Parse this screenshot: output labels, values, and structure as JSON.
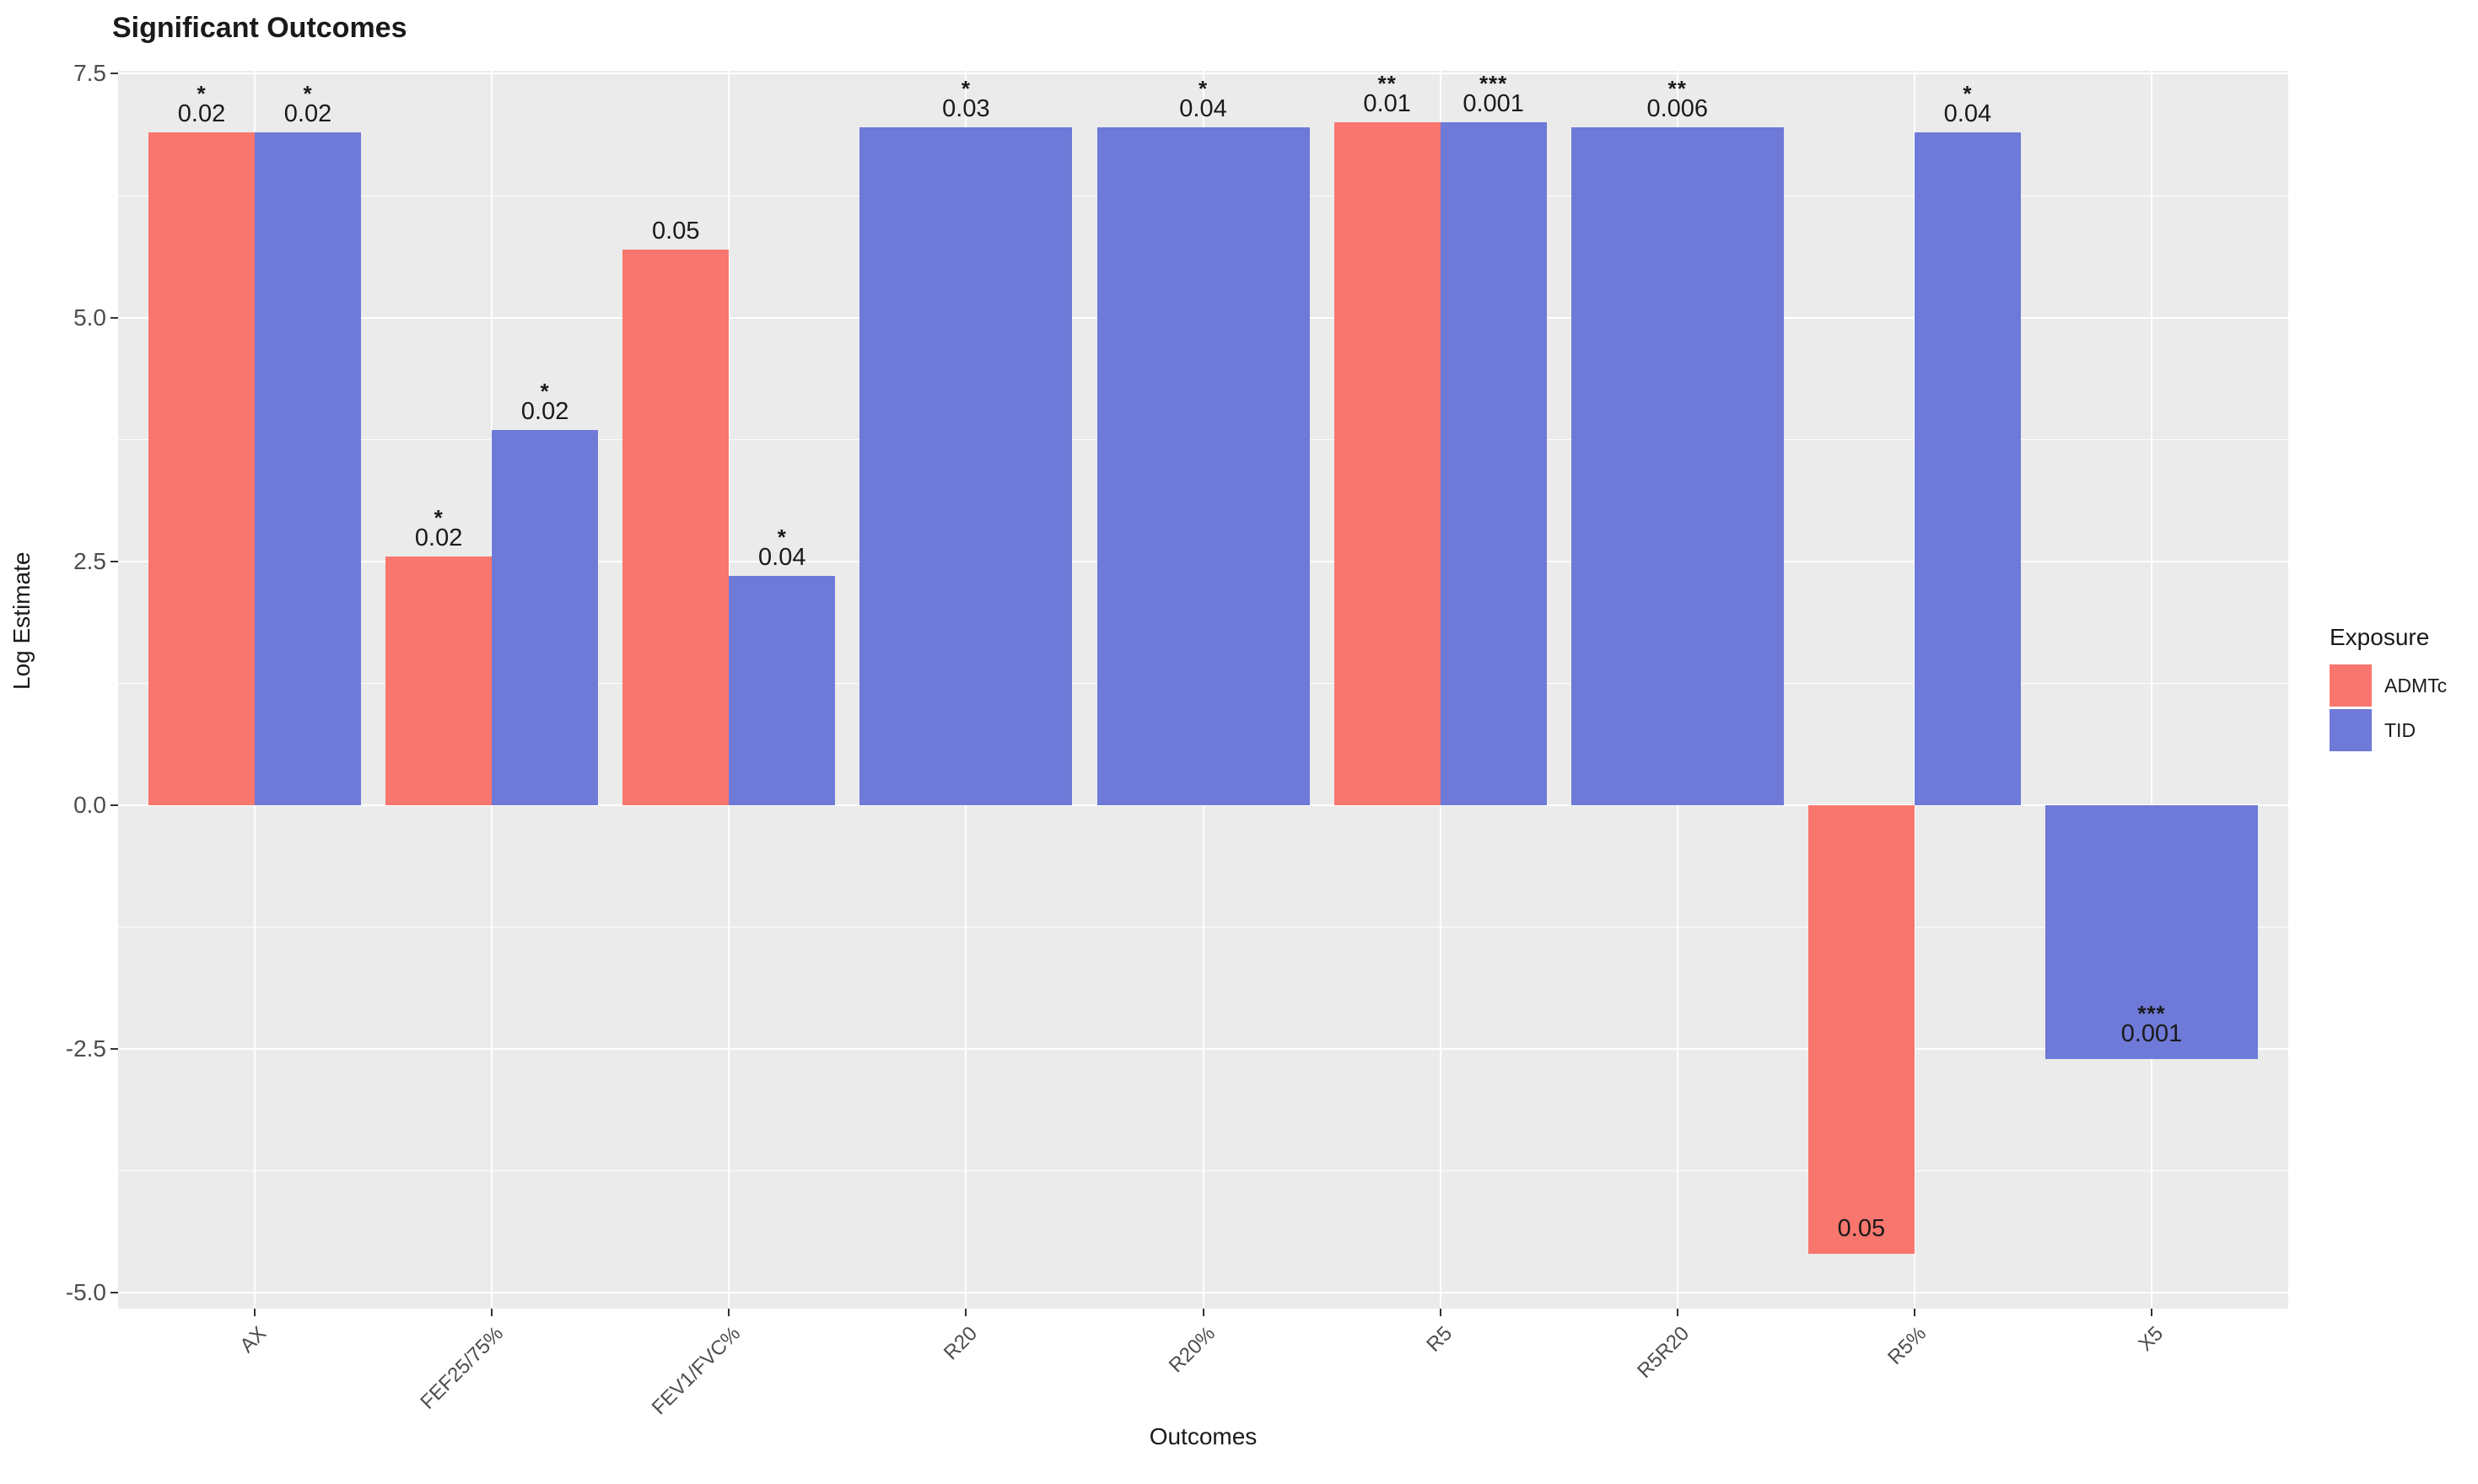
{
  "chart_data": {
    "type": "bar",
    "title": "Significant Outcomes",
    "xlabel": "Outcomes",
    "ylabel": "Log Estimate",
    "categories": [
      "AX",
      "FEF25/75%",
      "FEV1/FVC%",
      "R20",
      "R20%",
      "R5",
      "R5R20",
      "R5%",
      "X5"
    ],
    "series": [
      {
        "name": "ADMTc",
        "color": "#F8766D",
        "values": [
          6.9,
          2.55,
          5.7,
          null,
          null,
          7.0,
          null,
          -4.6,
          null
        ],
        "p_labels": [
          "0.02",
          "0.02",
          "0.05",
          null,
          null,
          "0.01",
          null,
          "0.05",
          null
        ],
        "stars": [
          "*",
          "*",
          "",
          null,
          null,
          "**",
          null,
          "",
          null
        ]
      },
      {
        "name": "TID",
        "color": "#6E79D8",
        "values": [
          6.9,
          3.85,
          2.35,
          6.95,
          6.95,
          7.0,
          6.95,
          6.9,
          -2.6
        ],
        "p_labels": [
          "0.02",
          "0.02",
          "0.04",
          "0.03",
          "0.04",
          "0.001",
          "0.006",
          "0.04",
          "0.001"
        ],
        "stars": [
          "*",
          "*",
          "*",
          "*",
          "*",
          "***",
          "**",
          "*",
          "***"
        ]
      }
    ],
    "ylim": [
      -5.16,
      7.53
    ],
    "yticks": [
      7.5,
      5.0,
      2.5,
      0.0,
      -2.5,
      -5.0
    ],
    "ytick_labels": [
      "7.5",
      "5.0",
      "2.5",
      "0.0",
      "-2.5",
      "-5.0"
    ],
    "yminor": [
      6.25,
      3.75,
      1.25,
      -1.25,
      -3.75
    ],
    "grid": true,
    "legend_position": "right",
    "panel_bg": "#EBEBEB",
    "grid_color": "#FFFFFF",
    "axis_text_color": "#4D4D4D",
    "label_text_color": "#1A1A1A"
  },
  "legend": {
    "title": "Exposure",
    "items": [
      {
        "label": "ADMTc",
        "color": "#F8766D"
      },
      {
        "label": "TID",
        "color": "#6E79D8"
      }
    ]
  }
}
